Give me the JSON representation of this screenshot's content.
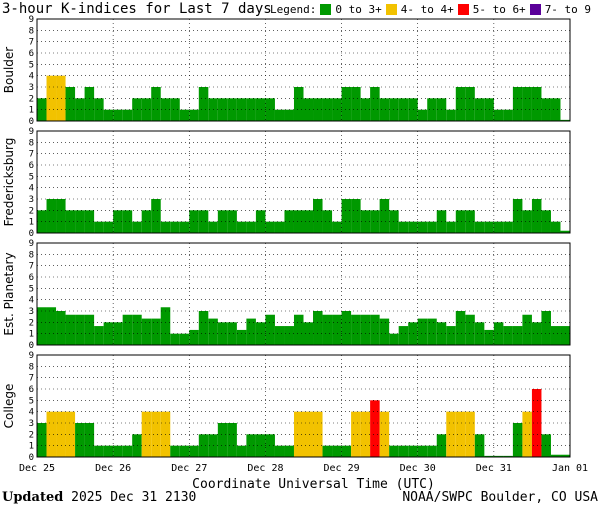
{
  "header": {
    "title": "3-hour K-indices for Last 7 days",
    "legend_label": "Legend:"
  },
  "legend": [
    {
      "label": "0 to 3+",
      "color": "#009900"
    },
    {
      "label": "4- to 4+",
      "color": "#f2c200"
    },
    {
      "label": "5- to 6+",
      "color": "#ff0000"
    },
    {
      "label": "7- to 9",
      "color": "#5a0099"
    }
  ],
  "footer": {
    "updated_label": "Updated",
    "updated_value": "2025 Dec 31 2130",
    "credit": "NOAA/SWPC Boulder, CO USA"
  },
  "chart_data": {
    "type": "bar",
    "xlabel": "Coordinate Universal Time (UTC)",
    "x_ticks": [
      "Dec 25",
      "Dec 26",
      "Dec 27",
      "Dec 28",
      "Dec 29",
      "Dec 30",
      "Dec 31",
      "Jan 01"
    ],
    "ylim": [
      0,
      9
    ],
    "y_ticks": [
      0,
      1,
      2,
      3,
      4,
      5,
      6,
      7,
      8,
      9
    ],
    "grid": true,
    "intervals_per_day": 8,
    "panels": [
      {
        "ylabel": "Boulder",
        "values": [
          2,
          4,
          4,
          3,
          2,
          3,
          2,
          1,
          1,
          1,
          2,
          2,
          3,
          2,
          2,
          1,
          1,
          3,
          2,
          2,
          2,
          2,
          2,
          2,
          2,
          1,
          1,
          3,
          2,
          2,
          2,
          2,
          3,
          3,
          2,
          3,
          2,
          2,
          2,
          2,
          1,
          2,
          2,
          1,
          3,
          3,
          2,
          2,
          1,
          1,
          3,
          3,
          3,
          2,
          2,
          0.1
        ]
      },
      {
        "ylabel": "Fredericksburg",
        "values": [
          2,
          3,
          3,
          2,
          2,
          2,
          1,
          1,
          2,
          2,
          1,
          2,
          3,
          1,
          1,
          1,
          2,
          2,
          1,
          2,
          2,
          1,
          1,
          2,
          1,
          1,
          2,
          2,
          2,
          3,
          2,
          1,
          3,
          3,
          2,
          2,
          3,
          2,
          1,
          1,
          1,
          1,
          2,
          1,
          2,
          2,
          1,
          1,
          1,
          1,
          3,
          2,
          3,
          2,
          1,
          0.2
        ]
      },
      {
        "ylabel": "Est. Planetary",
        "values": [
          3.33,
          3.33,
          3,
          2.67,
          2.67,
          2.67,
          1.67,
          2,
          2,
          2.67,
          2.67,
          2.33,
          2.33,
          3.33,
          1,
          1,
          1.33,
          3,
          2.33,
          2,
          2,
          1.33,
          2.33,
          2,
          2.67,
          1.67,
          1.67,
          2.67,
          2,
          3,
          2.67,
          2.67,
          3,
          2.67,
          2.67,
          2.67,
          2.33,
          1,
          1.67,
          2,
          2.33,
          2.33,
          2,
          1.67,
          3,
          2.67,
          2,
          1.33,
          2,
          1.67,
          1.67,
          2.67,
          2,
          3,
          1.67,
          1.67
        ]
      },
      {
        "ylabel": "College",
        "values": [
          3,
          4,
          4,
          4,
          3,
          3,
          1,
          1,
          1,
          1,
          2,
          4,
          4,
          4,
          1,
          1,
          1,
          2,
          2,
          3,
          3,
          1,
          2,
          2,
          2,
          1,
          1,
          4,
          4,
          4,
          1,
          1,
          1,
          4,
          4,
          5,
          4,
          1,
          1,
          1,
          1,
          1,
          2,
          4,
          4,
          4,
          2,
          0.1,
          0.1,
          0.1,
          3,
          4,
          6,
          2,
          0.2,
          0.2
        ]
      }
    ]
  }
}
